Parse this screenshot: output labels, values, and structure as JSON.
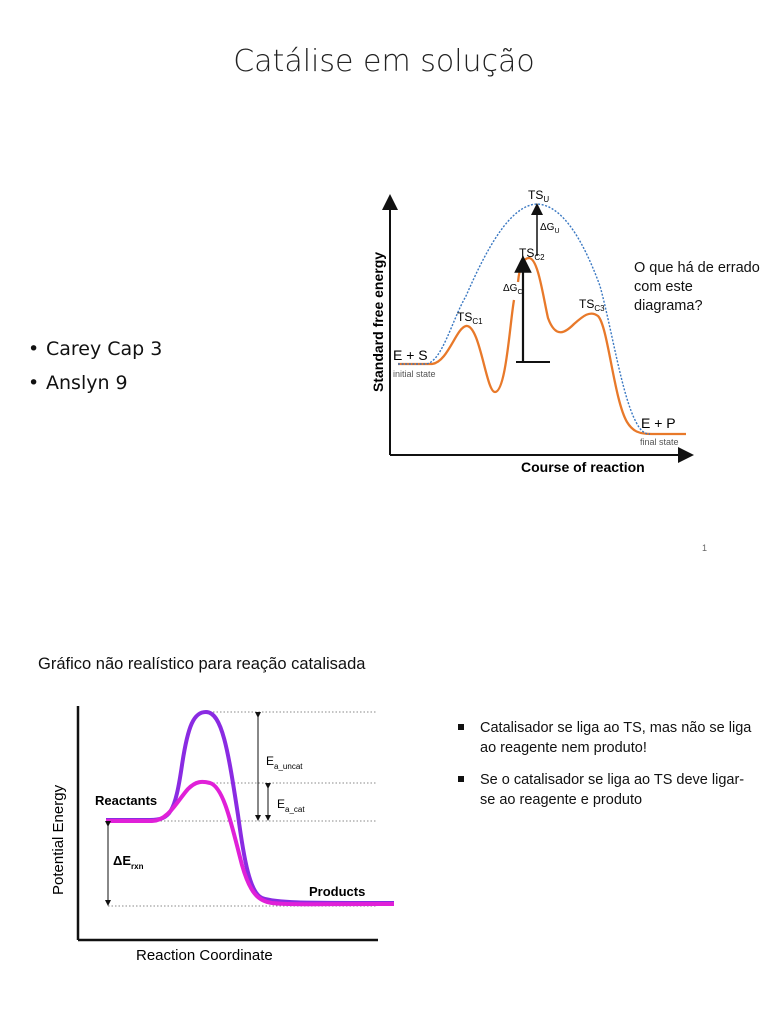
{
  "slide1": {
    "title": "Catálise em solução",
    "bullets": [
      "Carey Cap 3",
      "Anslyn  9"
    ],
    "question": "O que há de errado com este diagrama?",
    "page_number": "1",
    "diagram": {
      "ylabel": "Standard free energy",
      "xlabel": "Course of reaction",
      "ts_u": "TS",
      "ts_u_sub": "U",
      "ts_c1": "TS",
      "ts_c1_sub": "C1",
      "ts_c2": "TS",
      "ts_c2_sub": "C2",
      "ts_c3": "TS",
      "ts_c3_sub": "C3",
      "dg_u": "ΔG",
      "dg_u_sub": "U",
      "dg_c": "ΔG",
      "dg_c_sub": "C",
      "es": "E + S",
      "initial": "initial state",
      "ep": "E + P",
      "final": "final state",
      "colors": {
        "uncatalyzed": "#3a78c2",
        "catalyzed": "#e8792a"
      }
    }
  },
  "slide2": {
    "caption": "Gráfico não realístico para reação catalisada",
    "bullets": [
      "Catalisador se liga ao TS, mas não se liga ao reagente nem produto!",
      "Se o catalisador se liga ao TS deve ligar-se ao reagente e produto"
    ],
    "diagram": {
      "ylabel": "Potential Energy",
      "xlabel": "Reaction Coordinate",
      "reactants": "Reactants",
      "products": "Products",
      "ea_uncat": "E",
      "ea_uncat_sub": "a_uncat",
      "ea_cat": "E",
      "ea_cat_sub": "a_cat",
      "de": "ΔE",
      "de_sub": "rxn",
      "colors": {
        "uncatalyzed": "#8a2be2",
        "catalyzed": "#e020d8"
      }
    }
  }
}
